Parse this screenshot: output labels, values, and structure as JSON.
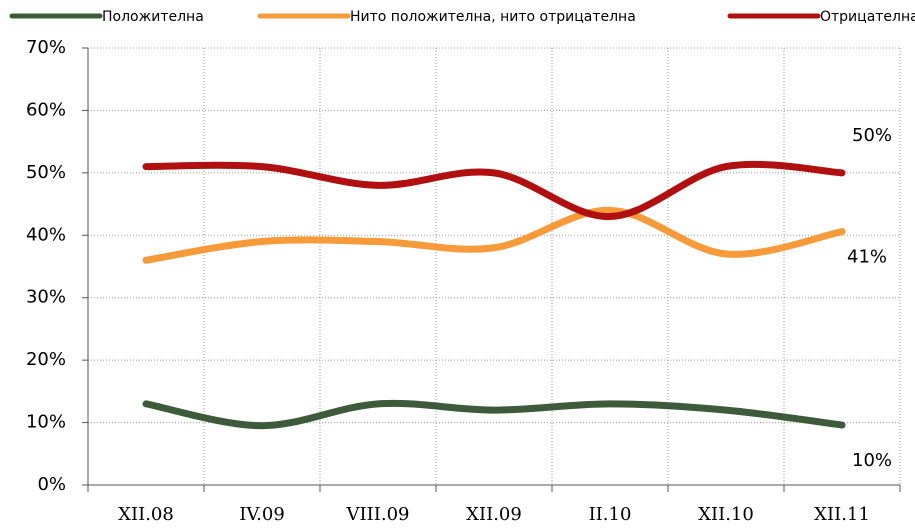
{
  "chart_data": {
    "type": "line",
    "categories": [
      "XII.08",
      "IV.09",
      "VIII.09",
      "XII.09",
      "II.10",
      "XII.10",
      "XII.11"
    ],
    "series": [
      {
        "name": "Положителна",
        "color": "#3d5a3a",
        "values": [
          13,
          9.5,
          13,
          12,
          13,
          12,
          9.6
        ],
        "value_labels": [
          null,
          null,
          null,
          null,
          null,
          null,
          "10%"
        ]
      },
      {
        "name": "Нито положителна, нито отрицателна",
        "color": "#f79a3a",
        "values": [
          36,
          39,
          39,
          38,
          44,
          37,
          40.6
        ],
        "value_labels": [
          null,
          null,
          null,
          null,
          null,
          null,
          "41%"
        ]
      },
      {
        "name": "Отрицателна",
        "color": "#b01010",
        "values": [
          51,
          51,
          48,
          50,
          43,
          51,
          50
        ],
        "value_labels": [
          null,
          null,
          null,
          null,
          null,
          null,
          "50%"
        ]
      }
    ],
    "ylim": [
      0,
      70
    ],
    "yticks": [
      {
        "value": 0,
        "label": "0%"
      },
      {
        "value": 10,
        "label": "10%"
      },
      {
        "value": 20,
        "label": "20%"
      },
      {
        "value": 30,
        "label": "30%"
      },
      {
        "value": 40,
        "label": "40%"
      },
      {
        "value": 50,
        "label": "50%"
      },
      {
        "value": 60,
        "label": "60%"
      },
      {
        "value": 70,
        "label": "70%"
      }
    ],
    "grid": true,
    "smooth": true,
    "legend": "top"
  }
}
